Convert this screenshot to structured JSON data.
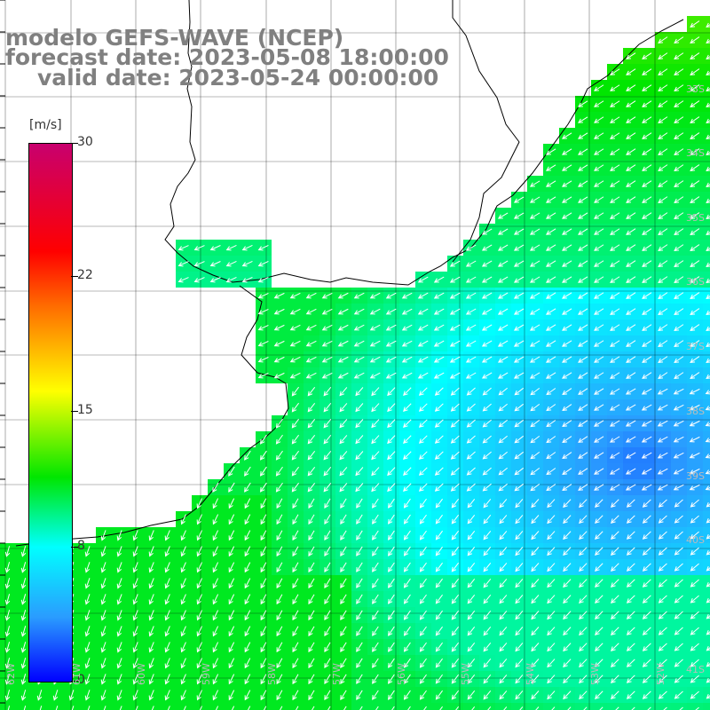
{
  "title": {
    "line1": "modelo GEFS-WAVE (NCEP)",
    "line2": "forecast date: 2023-05-08 18:00:00",
    "line3": "valid date: 2023-05-24 00:00:00"
  },
  "colorbar": {
    "unit": "[m/s]",
    "ticks": [
      "30",
      "22",
      "15",
      "8",
      "0"
    ],
    "tick_values": [
      30,
      22,
      15,
      8,
      0
    ],
    "colors": [
      "#c8006e",
      "#ff0000",
      "#ff6a00",
      "#ffff00",
      "#00e600",
      "#00ffff",
      "#2a9cff",
      "#0000ff"
    ]
  },
  "lat_labels": [
    "33S",
    "34S",
    "35S",
    "36S",
    "37S",
    "38S",
    "39S",
    "40S",
    "41S"
  ],
  "lon_labels": [
    "62W",
    "61W",
    "60W",
    "59W",
    "58W",
    "57W",
    "56W",
    "55W",
    "54W",
    "53W",
    "52W",
    "51W"
  ],
  "colors": {
    "land": "#ffffff",
    "coast": "#000000",
    "grid": "#000000",
    "arrow": "#ffffff"
  }
}
